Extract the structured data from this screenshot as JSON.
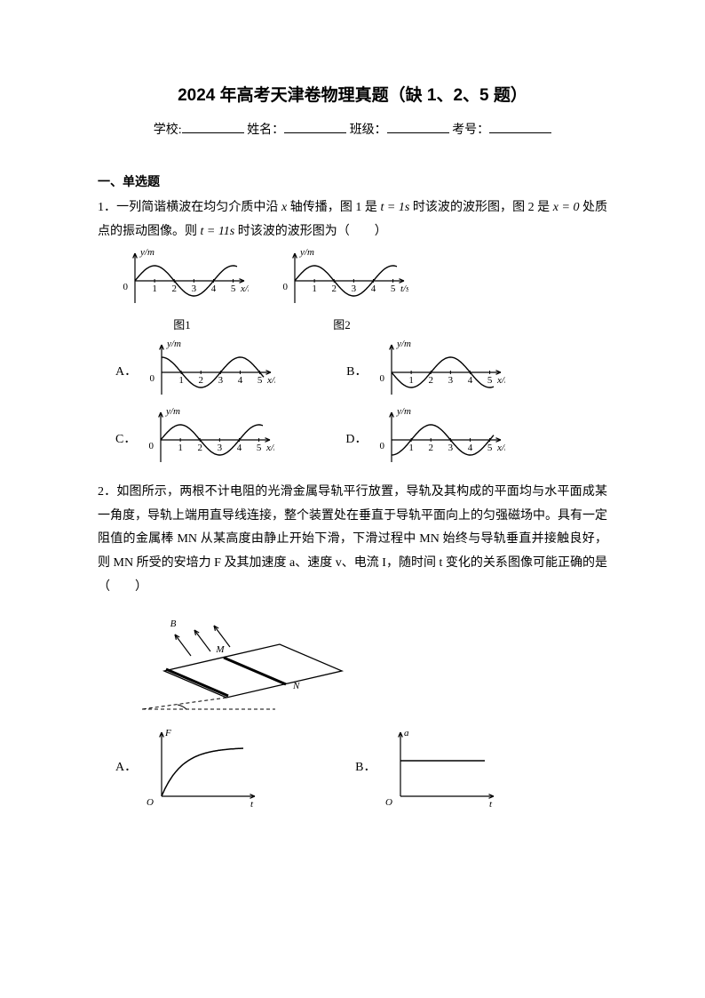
{
  "title": "2024 年高考天津卷物理真题（缺 1、2、5 题）",
  "info": {
    "school": "学校:",
    "name": "姓名：",
    "class": "班级：",
    "id": "考号："
  },
  "section1": "一、单选题",
  "q1": {
    "num": "1．",
    "text_a": "一列简谐横波在均匀介质中沿 ",
    "var_x": "x",
    "text_b": " 轴传播，图 1 是 ",
    "eq1": "t = 1s",
    "text_c": " 时该波的波形图，图 2 是 ",
    "eq2": "x = 0",
    "text_d": " 处质点的振动图像。则 ",
    "eq3": "t = 11s",
    "text_e": " 时该波的波形图为（　　）",
    "fig1_cap": "图1",
    "fig2_cap": "图2",
    "ylabel": "y/m",
    "xlabel1": "x/m",
    "xlabel2": "t/s",
    "ticks": [
      "1",
      "2",
      "3",
      "4",
      "5"
    ],
    "optA": "A．",
    "optB": "B．",
    "optC": "C．",
    "optD": "D．",
    "colors": {
      "axis": "#000000",
      "curve": "#000000"
    },
    "graphs": {
      "fig1": {
        "phase": 0,
        "xlabel": "x/m"
      },
      "fig2": {
        "phase": 0,
        "xlabel": "t/s"
      },
      "A": {
        "phase": 1.5708,
        "xlabel": "x/m"
      },
      "B": {
        "phase": 3.1416,
        "xlabel": "x/m"
      },
      "C": {
        "phase": 0,
        "xlabel": "x/m"
      },
      "D": {
        "phase": -1.5708,
        "xlabel": "x/m"
      }
    }
  },
  "q2": {
    "num": "2．",
    "text": "如图所示，两根不计电阻的光滑金属导轨平行放置，导轨及其构成的平面均与水平面成某一角度，导轨上端用直导线连接，整个装置处在垂直于导轨平面向上的匀强磁场中。具有一定阻值的金属棒 MN 从某高度由静止开始下滑，下滑过程中 MN 始终与导轨垂直并接触良好，则 MN 所受的安培力 F 及其加速度 a、速度 v、电流 I，随时间 t 变化的关系图像可能正确的是（　　）",
    "labels": {
      "B": "B",
      "M": "M",
      "N": "N",
      "F": "F",
      "a": "a",
      "O": "O",
      "t": "t"
    },
    "optA": "A．",
    "optB": "B．",
    "colors": {
      "line": "#000000",
      "dash": "#000000"
    }
  }
}
